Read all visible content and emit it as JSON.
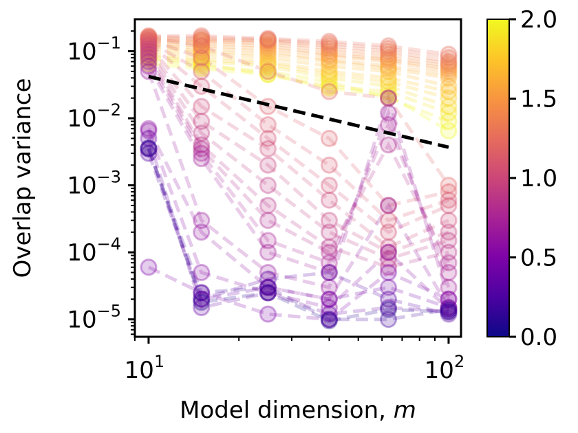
{
  "chart_data": {
    "type": "scatter",
    "xlabel": "Model dimension, ",
    "xlabel_var": "m",
    "ylabel": "Overlap variance",
    "x_scale": "log",
    "y_scale": "log",
    "xlim": [
      9,
      110
    ],
    "ylim": [
      5.5e-06,
      0.3
    ],
    "x_ticks": [
      {
        "value": 10,
        "base": "10",
        "exp": "1"
      },
      {
        "value": 100,
        "base": "10",
        "exp": "2"
      }
    ],
    "y_ticks": [
      {
        "value": 1e-05,
        "base": "10",
        "exp": "−5"
      },
      {
        "value": 0.0001,
        "base": "10",
        "exp": "−4"
      },
      {
        "value": 0.001,
        "base": "10",
        "exp": "−3"
      },
      {
        "value": 0.01,
        "base": "10",
        "exp": "−2"
      },
      {
        "value": 0.1,
        "base": "10",
        "exp": "−1"
      }
    ],
    "x_values": [
      10,
      15,
      25,
      40,
      63,
      100
    ],
    "colorbar": {
      "min": 0.0,
      "max": 2.0,
      "colormap": "plasma",
      "tick_labels": [
        "0.0",
        "0.5",
        "1.0",
        "1.5",
        "2.0"
      ],
      "tick_values": [
        0.0,
        0.5,
        1.0,
        1.5,
        2.0
      ]
    },
    "reference_line": {
      "style": "dashed",
      "color": "#000000",
      "points": [
        [
          10,
          0.042
        ],
        [
          100,
          0.0037
        ]
      ]
    },
    "series": [
      {
        "c": 2.0,
        "values": [
          0.065,
          0.055,
          0.045,
          0.028,
          0.022,
          0.0065
        ]
      },
      {
        "c": 1.95,
        "values": [
          0.075,
          0.06,
          0.05,
          0.035,
          0.02,
          0.009
        ]
      },
      {
        "c": 1.9,
        "values": [
          0.08,
          0.065,
          0.045,
          0.03,
          0.025,
          0.012
        ]
      },
      {
        "c": 1.85,
        "values": [
          0.085,
          0.07,
          0.06,
          0.04,
          0.03,
          0.015
        ]
      },
      {
        "c": 1.8,
        "values": [
          0.09,
          0.075,
          0.065,
          0.045,
          0.035,
          0.02
        ]
      },
      {
        "c": 1.75,
        "values": [
          0.1,
          0.085,
          0.07,
          0.05,
          0.04,
          0.025
        ]
      },
      {
        "c": 1.7,
        "values": [
          0.11,
          0.095,
          0.08,
          0.06,
          0.05,
          0.03
        ]
      },
      {
        "c": 1.65,
        "values": [
          0.12,
          0.1,
          0.09,
          0.07,
          0.055,
          0.04
        ]
      },
      {
        "c": 1.6,
        "values": [
          0.125,
          0.11,
          0.1,
          0.075,
          0.06,
          0.045
        ]
      },
      {
        "c": 1.55,
        "values": [
          0.13,
          0.12,
          0.11,
          0.085,
          0.07,
          0.05
        ]
      },
      {
        "c": 1.5,
        "values": [
          0.14,
          0.13,
          0.12,
          0.09,
          0.075,
          0.055
        ]
      },
      {
        "c": 1.45,
        "values": [
          0.145,
          0.14,
          0.13,
          0.1,
          0.08,
          0.06
        ]
      },
      {
        "c": 1.4,
        "values": [
          0.15,
          0.145,
          0.14,
          0.11,
          0.09,
          0.065
        ]
      },
      {
        "c": 1.35,
        "values": [
          0.16,
          0.15,
          0.145,
          0.12,
          0.1,
          0.07
        ]
      },
      {
        "c": 1.3,
        "values": [
          0.165,
          0.16,
          0.15,
          0.13,
          0.11,
          0.08
        ]
      },
      {
        "c": 1.25,
        "values": [
          0.17,
          0.17,
          0.155,
          0.14,
          0.12,
          0.09
        ]
      },
      {
        "c": 1.2,
        "values": [
          0.16,
          0.12,
          0.05,
          0.025,
          0.02,
          0.001
        ]
      },
      {
        "c": 1.15,
        "values": [
          0.15,
          0.08,
          0.015,
          0.005,
          0.0005,
          0.0008
        ]
      },
      {
        "c": 1.1,
        "values": [
          0.14,
          0.05,
          0.008,
          0.002,
          0.0003,
          0.0006
        ]
      },
      {
        "c": 1.05,
        "values": [
          0.13,
          0.03,
          0.005,
          0.001,
          0.0002,
          0.0005
        ]
      },
      {
        "c": 1.0,
        "values": [
          0.12,
          0.015,
          0.0035,
          0.0006,
          0.00012,
          0.0003
        ]
      },
      {
        "c": 0.95,
        "values": [
          0.11,
          0.009,
          0.002,
          0.0003,
          0.0001,
          0.0002
        ]
      },
      {
        "c": 0.9,
        "values": [
          0.1,
          0.006,
          0.001,
          0.0002,
          8e-05,
          0.00015
        ]
      },
      {
        "c": 0.85,
        "values": [
          0.09,
          0.004,
          0.0005,
          0.00012,
          6e-05,
          0.0001
        ]
      },
      {
        "c": 0.8,
        "values": [
          0.08,
          0.0035,
          0.0003,
          0.0001,
          0.004,
          7e-05
        ]
      },
      {
        "c": 0.75,
        "values": [
          0.07,
          0.003,
          0.00015,
          7e-05,
          0.008,
          5e-05
        ]
      },
      {
        "c": 0.7,
        "values": [
          0.06,
          0.0025,
          0.0001,
          5e-05,
          0.012,
          3e-05
        ]
      },
      {
        "c": 0.65,
        "values": [
          0.05,
          0.0003,
          5e-05,
          3e-05,
          0.02,
          2e-05
        ]
      },
      {
        "c": 0.6,
        "values": [
          0.007,
          0.0002,
          3e-05,
          2e-05,
          0.0005,
          1.5e-05
        ]
      },
      {
        "c": 0.55,
        "values": [
          0.0065,
          5e-05,
          2.5e-05,
          1.5e-05,
          0.0001,
          1.4e-05
        ]
      },
      {
        "c": 0.5,
        "values": [
          6e-05,
          2.5e-05,
          1.2e-05,
          1e-05,
          5e-05,
          2e-05
        ]
      },
      {
        "c": 0.45,
        "values": [
          0.0035,
          2e-05,
          3e-05,
          2e-05,
          3e-05,
          1.5e-05
        ]
      },
      {
        "c": 0.4,
        "values": [
          0.005,
          1.5e-05,
          2.5e-05,
          1.2e-05,
          1.5e-05,
          1.3e-05
        ]
      },
      {
        "c": 0.3,
        "values": [
          0.003,
          2e-05,
          4e-05,
          5e-05,
          2e-05,
          1.2e-05
        ]
      },
      {
        "c": 0.2,
        "values": [
          0.0035,
          2.5e-05,
          3e-05,
          1e-05,
          1e-05,
          1.4e-05
        ]
      },
      {
        "c": 0.1,
        "values": [
          0.0036,
          1.8e-05,
          2.5e-05,
          9.5e-06,
          1.4e-05,
          1.3e-05
        ]
      }
    ]
  }
}
